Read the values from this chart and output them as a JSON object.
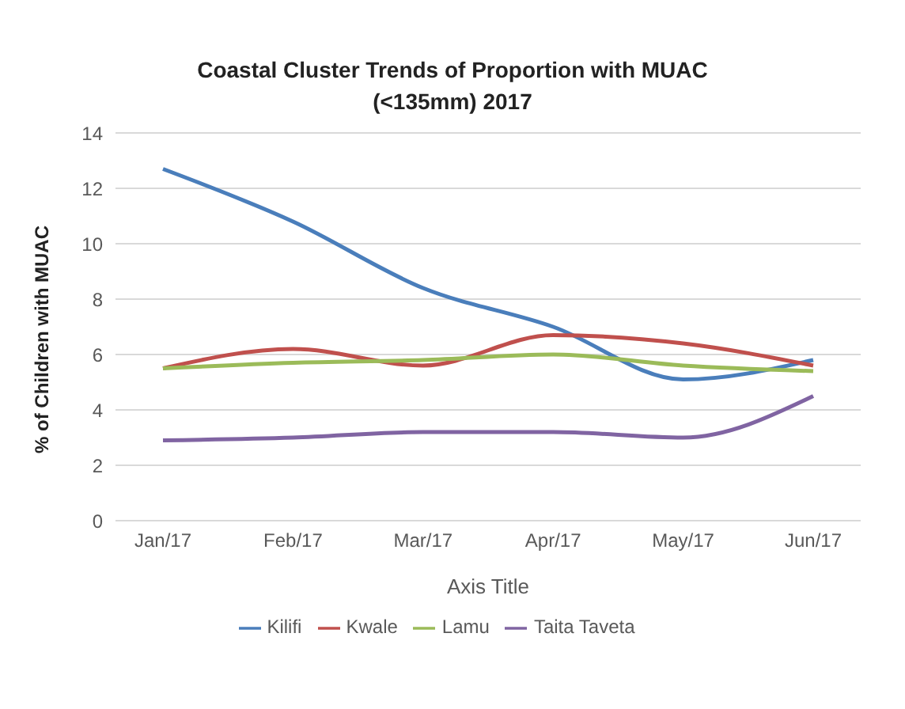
{
  "chart_data": {
    "type": "line",
    "title": "Coastal Cluster Trends of Proportion with MUAC (<135mm) 2017",
    "xlabel": "Axis Title",
    "ylabel": "% of Children with MUAC",
    "categories": [
      "Jan/17",
      "Feb/17",
      "Mar/17",
      "Apr/17",
      "May/17",
      "Jun/17"
    ],
    "series": [
      {
        "name": "Kilifi",
        "color": "#4a7ebb",
        "values": [
          12.7,
          10.8,
          8.4,
          7.0,
          5.1,
          5.8
        ]
      },
      {
        "name": "Kwale",
        "color": "#c0504d",
        "values": [
          5.5,
          6.2,
          5.6,
          6.7,
          6.4,
          5.6
        ]
      },
      {
        "name": "Lamu",
        "color": "#9bbb59",
        "values": [
          5.5,
          5.7,
          5.8,
          6.0,
          5.6,
          5.4
        ]
      },
      {
        "name": "Taita Taveta",
        "color": "#8064a2",
        "values": [
          2.9,
          3.0,
          3.2,
          3.2,
          3.0,
          4.5
        ]
      }
    ],
    "ylim": [
      0,
      14
    ],
    "yticks": [
      0,
      2,
      4,
      6,
      8,
      10,
      12,
      14
    ],
    "grid": "y",
    "legend": "bottom",
    "marker": "none",
    "line_style": "solid"
  }
}
